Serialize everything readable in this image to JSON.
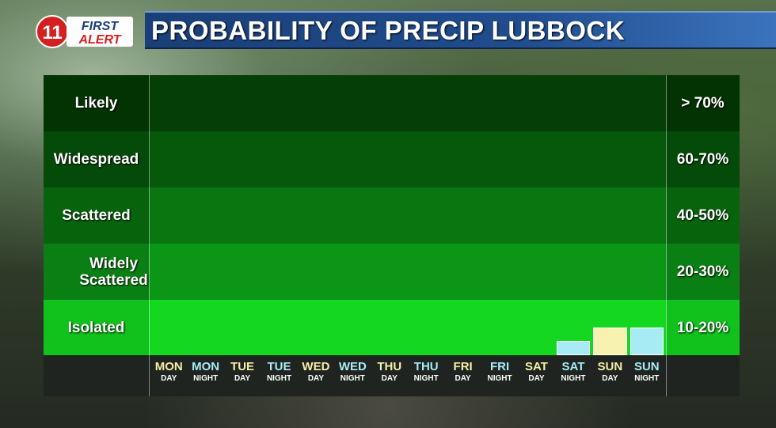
{
  "logo": {
    "number": "11",
    "line1": "FIRST",
    "line2": "ALERT"
  },
  "title": "PROBABILITY OF PRECIP LUBBOCK",
  "categories": [
    {
      "label": "Likely",
      "range": "> 70%"
    },
    {
      "label": "Widespread",
      "range": "60-70%"
    },
    {
      "label": "Scattered",
      "range": "40-50%"
    },
    {
      "label": "Widely Scattered",
      "range": "20-30%"
    },
    {
      "label": "Isolated",
      "range": "10-20%"
    }
  ],
  "colors": {
    "band_fills": [
      "#053e06",
      "#06580a",
      "#097610",
      "#0c9616",
      "#14d820"
    ],
    "label_fills": [
      "#033203",
      "#044a08",
      "#07640d",
      "#0a8014",
      "#11c11c"
    ],
    "day_text": "#f4f0a8",
    "night_text": "#a9ecf5",
    "day_bar": "#f7f2b0",
    "night_bar": "#a7ecf4"
  },
  "periods": [
    {
      "day": "MON",
      "part": "DAY"
    },
    {
      "day": "MON",
      "part": "NIGHT"
    },
    {
      "day": "TUE",
      "part": "DAY"
    },
    {
      "day": "TUE",
      "part": "NIGHT"
    },
    {
      "day": "WED",
      "part": "DAY"
    },
    {
      "day": "WED",
      "part": "NIGHT"
    },
    {
      "day": "THU",
      "part": "DAY"
    },
    {
      "day": "THU",
      "part": "NIGHT"
    },
    {
      "day": "FRI",
      "part": "DAY"
    },
    {
      "day": "FRI",
      "part": "NIGHT"
    },
    {
      "day": "SAT",
      "part": "DAY"
    },
    {
      "day": "SAT",
      "part": "NIGHT"
    },
    {
      "day": "SUN",
      "part": "DAY"
    },
    {
      "day": "SUN",
      "part": "NIGHT"
    }
  ],
  "chart_data": {
    "type": "bar",
    "categories": [
      "MON DAY",
      "MON NIGHT",
      "TUE DAY",
      "TUE NIGHT",
      "WED DAY",
      "WED NIGHT",
      "THU DAY",
      "THU NIGHT",
      "FRI DAY",
      "FRI NIGHT",
      "SAT DAY",
      "SAT NIGHT",
      "SUN DAY",
      "SUN NIGHT"
    ],
    "values": [
      0,
      0,
      0,
      0,
      0,
      0,
      0,
      0,
      0,
      0,
      0,
      5,
      10,
      10
    ],
    "bands": [
      "Likely",
      "Widespread",
      "Scattered",
      "Widely Scattered",
      "Isolated"
    ],
    "ranges": [
      "> 70%",
      "60-70%",
      "40-50%",
      "20-30%",
      "10-20%"
    ]
  }
}
